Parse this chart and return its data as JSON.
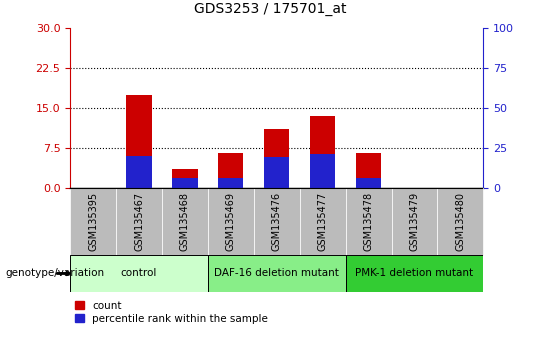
{
  "title": "GDS3253 / 175701_at",
  "samples": [
    "GSM135395",
    "GSM135467",
    "GSM135468",
    "GSM135469",
    "GSM135476",
    "GSM135477",
    "GSM135478",
    "GSM135479",
    "GSM135480"
  ],
  "count_values": [
    0,
    17.5,
    3.5,
    6.5,
    11.0,
    13.5,
    6.5,
    0,
    0
  ],
  "percentile_values": [
    0,
    20,
    6,
    6,
    19,
    21,
    6,
    0,
    0
  ],
  "left_yticks": [
    0,
    7.5,
    15,
    22.5,
    30
  ],
  "right_yticks": [
    0,
    25,
    50,
    75,
    100
  ],
  "ylim_left": [
    0,
    30
  ],
  "ylim_right": [
    0,
    100
  ],
  "count_color": "#cc0000",
  "percentile_color": "#2222cc",
  "bar_width": 0.55,
  "groups": [
    {
      "label": "control",
      "indices": [
        0,
        1,
        2
      ],
      "color": "#ccffcc"
    },
    {
      "label": "DAF-16 deletion mutant",
      "indices": [
        3,
        4,
        5
      ],
      "color": "#88ee88"
    },
    {
      "label": "PMK-1 deletion mutant",
      "indices": [
        6,
        7,
        8
      ],
      "color": "#33cc33"
    }
  ],
  "tick_bg_color": "#bbbbbb",
  "legend_count_label": "count",
  "legend_percentile_label": "percentile rank within the sample",
  "genotype_label": "genotype/variation",
  "left_axis_color": "#cc0000",
  "right_axis_color": "#2222cc",
  "title_fontsize": 10,
  "tick_fontsize": 7,
  "group_fontsize": 7.5,
  "legend_fontsize": 7.5
}
